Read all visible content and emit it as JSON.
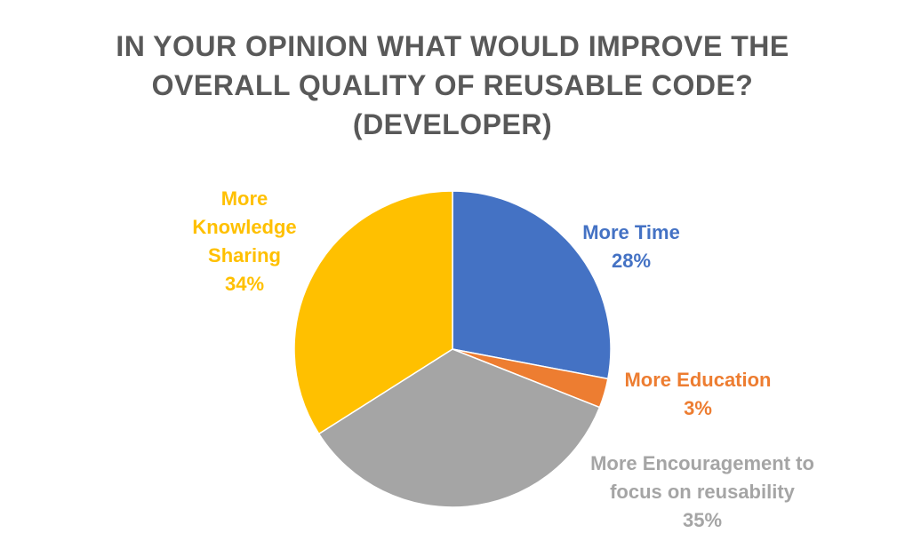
{
  "chart_data": {
    "type": "pie",
    "title_lines": [
      "IN YOUR OPINION WHAT WOULD IMPROVE THE",
      "OVERALL QUALITY OF REUSABLE CODE?",
      "(DEVELOPER)"
    ],
    "start_angle_deg": 0,
    "direction": "clockwise",
    "slices": [
      {
        "label_lines": [
          "More Time"
        ],
        "percent_label": "28%",
        "value": 28,
        "color": "#4472C4"
      },
      {
        "label_lines": [
          "More Education"
        ],
        "percent_label": "3%",
        "value": 3,
        "color": "#ED7D31"
      },
      {
        "label_lines": [
          "More Encouragement to",
          "focus on reusability"
        ],
        "percent_label": "35%",
        "value": 35,
        "color": "#A5A5A5"
      },
      {
        "label_lines": [
          "More",
          "Knowledge",
          "Sharing"
        ],
        "percent_label": "34%",
        "value": 34,
        "color": "#FFC000"
      }
    ]
  }
}
